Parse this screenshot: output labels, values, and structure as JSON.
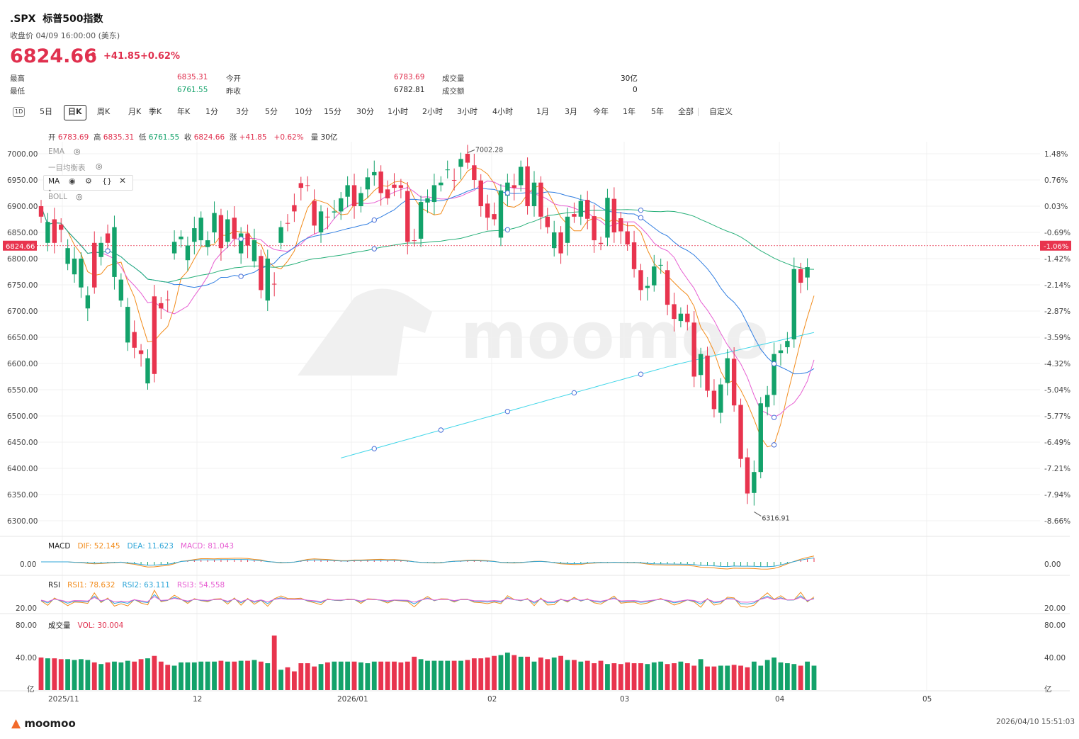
{
  "header": {
    "symbol": ".SPX",
    "name": "标普500指数",
    "close_time_label": "收盘价 04/09 16:00:00 (美东)",
    "price": "6824.66",
    "change": "+41.85",
    "change_pct": "+0.62%",
    "stats": [
      {
        "label": "最高",
        "value": "6835.31",
        "color": "red"
      },
      {
        "label": "最低",
        "value": "6761.55",
        "color": "green"
      },
      {
        "label": "今开",
        "value": "6783.69",
        "color": "red"
      },
      {
        "label": "昨收",
        "value": "6782.81",
        "color": "dark"
      },
      {
        "label": "成交量",
        "value": "30亿",
        "color": "dark"
      },
      {
        "label": "成交额",
        "value": "0",
        "color": "dark"
      }
    ]
  },
  "tabs": {
    "icon_label": "1D",
    "items": [
      "5日",
      "日K",
      "周K",
      "月K",
      "季K",
      "年K",
      "1分",
      "3分",
      "5分",
      "10分",
      "15分",
      "30分",
      "1小时",
      "2小时",
      "3小时",
      "4小时",
      "1月",
      "3月",
      "今年",
      "1年",
      "5年",
      "全部",
      "自定义"
    ],
    "active": "日K"
  },
  "ohlc_bar": {
    "open_label": "开",
    "open": "6783.69",
    "high_label": "高",
    "high": "6835.31",
    "low_label": "低",
    "low": "6761.55",
    "close_label": "收",
    "close": "6824.66",
    "chg_label": "涨",
    "chg": "+41.85",
    "chg_pct": "+0.62%",
    "vol_label": "量",
    "vol": "30亿"
  },
  "indicators": {
    "ema": "EMA",
    "ichimoku": "一目均衡表",
    "ma": "MA",
    "boll": "BOLL"
  },
  "colors": {
    "up": "#e8344e",
    "down": "#13a26a",
    "ma5": "#f28c1c",
    "ma10": "#e75fd2",
    "ma20": "#2f7de1",
    "ma60": "#27b079",
    "ma120": "#3ed5e8"
  },
  "chart_data": {
    "type": "candlestick",
    "y_ticks": [
      "7000.00",
      "6950.00",
      "6900.00",
      "6850.00",
      "6800.00",
      "6750.00",
      "6700.00",
      "6650.00",
      "6600.00",
      "6550.00",
      "6500.00",
      "6450.00",
      "6400.00",
      "6350.00",
      "6300.00"
    ],
    "pct_ticks": [
      "1.48%",
      "0.76%",
      "0.03%",
      "-0.69%",
      "-1.42%",
      "-2.14%",
      "-2.87%",
      "-3.59%",
      "-4.32%",
      "-5.04%",
      "-5.77%",
      "-6.49%",
      "-7.21%",
      "-7.94%",
      "-8.66%"
    ],
    "x_ticks": [
      "2025/11",
      "12",
      "2026/01",
      "02",
      "03",
      "04",
      "05"
    ],
    "current_price_label": "6824.66",
    "current_pct_label": "-1.06%",
    "max_label": "7002.28",
    "min_label": "6316.91",
    "closes": [
      6900,
      6830,
      6875,
      6865,
      6790,
      6770,
      6745,
      6705,
      6830,
      6803,
      6848,
      6765,
      6720,
      6640,
      6660,
      6625,
      6562,
      6728,
      6715,
      6722,
      6810,
      6837,
      6797,
      6832,
      6835,
      6822,
      6850,
      6883,
      6832,
      6878,
      6810,
      6848,
      6795,
      6805,
      6720,
      6752,
      6830,
      6868,
      6902,
      6944,
      6940,
      6910,
      6850,
      6880,
      6888,
      6890,
      6918,
      6940,
      6900,
      6932,
      6959,
      6966,
      6932,
      6941,
      6940,
      6929,
      6835,
      6838,
      6907,
      6908,
      6940,
      6969,
      6950,
      6975,
      7000,
      6978,
      6949,
      6905,
      6885,
      6840,
      6920,
      6940,
      6940,
      6976,
      6900,
      6945,
      6880,
      6820,
      6850,
      6830,
      6885,
      6880,
      6912,
      6881,
      6830,
      6840,
      6914,
      6877,
      6852,
      6831,
      6778,
      6744,
      6749,
      6787,
      6778,
      6713,
      6681,
      6695,
      6678,
      6578,
      6615,
      6548,
      6506,
      6563,
      6609,
      6521,
      6421,
      6353,
      6393,
      6517,
      6540,
      6620,
      6631,
      6646,
      6780,
      6764,
      6824.66
    ],
    "opens": [
      6880,
      6870,
      6830,
      6855,
      6820,
      6800,
      6800,
      6730,
      6745,
      6830,
      6830,
      6860,
      6760,
      6708,
      6630,
      6618,
      6610,
      6580,
      6705,
      6722,
      6832,
      6842,
      6825,
      6858,
      6878,
      6835,
      6887,
      6820,
      6875,
      6838,
      6848,
      6825,
      6835,
      6740,
      6800,
      6752,
      6860,
      6868,
      6890,
      6935,
      6940,
      6863,
      6890,
      6880,
      6890,
      6915,
      6940,
      6900,
      6925,
      6955,
      6965,
      6925,
      6915,
      6935,
      6935,
      6832,
      6835,
      6908,
      6915,
      6940,
      6945,
      6970,
      6950,
      6990,
      6983,
      6950,
      6900,
      6878,
      6875,
      6930,
      6945,
      6935,
      6975,
      6900,
      6945,
      6880,
      6860,
      6850,
      6810,
      6880,
      6880,
      6910,
      6876,
      6835,
      6828,
      6916,
      6850,
      6852,
      6827,
      6780,
      6740,
      6748,
      6785,
      6788,
      6712,
      6685,
      6695,
      6679,
      6575,
      6618,
      6548,
      6513,
      6560,
      6610,
      6520,
      6418,
      6352,
      6393,
      6524,
      6540,
      6618,
      6625,
      6643,
      6780,
      6754,
      6783.69
    ],
    "volumes": [
      40,
      39,
      39,
      38,
      38,
      37,
      38,
      37,
      34,
      32,
      34,
      35,
      34,
      36,
      35,
      38,
      39,
      42,
      35,
      31,
      30,
      34,
      34,
      34,
      35,
      35,
      35,
      36,
      35,
      35,
      36,
      36,
      37,
      35,
      33,
      67,
      25,
      28,
      23,
      33,
      33,
      29,
      32,
      34,
      35,
      35,
      35,
      35,
      34,
      33,
      35,
      35,
      35,
      35,
      34,
      35,
      41,
      38,
      36,
      36,
      36,
      36,
      36,
      36,
      37,
      39,
      39,
      40,
      42,
      43,
      46,
      43,
      41,
      41,
      35,
      40,
      38,
      40,
      42,
      37,
      37,
      35,
      36,
      33,
      36,
      32,
      33,
      32,
      34,
      33,
      33,
      32,
      34,
      35,
      32,
      33,
      35,
      33,
      30,
      38,
      29,
      29,
      30,
      30,
      31,
      30,
      28,
      35,
      30,
      37,
      40,
      34,
      33,
      32,
      30,
      35,
      30.004
    ],
    "macd_label": "MACD",
    "dif_label": "DIF: 52.145",
    "dea_label": "DEA: 11.623",
    "macd_val_label": "MACD: 81.043",
    "macd_tick": "0.00",
    "rsi_label": "RSI",
    "rsi1_label": "RSI1: 78.632",
    "rsi2_label": "RSI2: 63.111",
    "rsi3_label": "RSI3: 54.558",
    "rsi_tick": "20.00",
    "vol_title": "成交量",
    "vol_label": "VOL: 30.004",
    "vol_ticks": [
      "80.00",
      "40.00",
      "亿"
    ]
  },
  "footer": {
    "brand": "moomoo",
    "timestamp": "2026/04/10 15:51:03"
  }
}
